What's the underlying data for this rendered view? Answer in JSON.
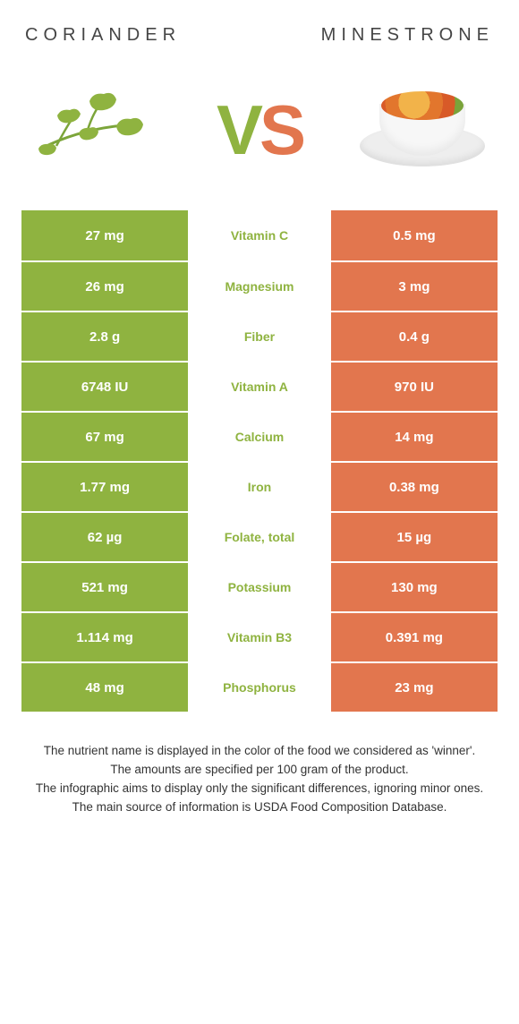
{
  "header": {
    "left_title": "CORIANDER",
    "right_title": "MINESTRONE",
    "vs_left": "V",
    "vs_right": "S"
  },
  "colors": {
    "green": "#8fb340",
    "orange": "#e2764e",
    "row_gap": "#ffffff",
    "text_white": "#ffffff",
    "title_gray": "#454545"
  },
  "table": {
    "left_bg": "#8fb340",
    "right_bg": "#e2764e",
    "mid_bg": "#ffffff",
    "label_color_left": "#8fb340",
    "label_color_right": "#e2764e",
    "rows": [
      {
        "left": "27 mg",
        "label": "Vitamin C",
        "right": "0.5 mg",
        "winner": "left"
      },
      {
        "left": "26 mg",
        "label": "Magnesium",
        "right": "3 mg",
        "winner": "left"
      },
      {
        "left": "2.8 g",
        "label": "Fiber",
        "right": "0.4 g",
        "winner": "left"
      },
      {
        "left": "6748 IU",
        "label": "Vitamin A",
        "right": "970 IU",
        "winner": "left"
      },
      {
        "left": "67 mg",
        "label": "Calcium",
        "right": "14 mg",
        "winner": "left"
      },
      {
        "left": "1.77 mg",
        "label": "Iron",
        "right": "0.38 mg",
        "winner": "left"
      },
      {
        "left": "62 µg",
        "label": "Folate, total",
        "right": "15 µg",
        "winner": "left"
      },
      {
        "left": "521 mg",
        "label": "Potassium",
        "right": "130 mg",
        "winner": "left"
      },
      {
        "left": "1.114 mg",
        "label": "Vitamin B3",
        "right": "0.391 mg",
        "winner": "left"
      },
      {
        "left": "48 mg",
        "label": "Phosphorus",
        "right": "23 mg",
        "winner": "left"
      }
    ]
  },
  "notes": {
    "line1": "The nutrient name is displayed in the color of the food we considered as 'winner'.",
    "line2": "The amounts are specified per 100 gram of the product.",
    "line3": "The infographic aims to display only the significant differences, ignoring minor ones.",
    "line4": "The main source of information is USDA Food Composition Database."
  }
}
